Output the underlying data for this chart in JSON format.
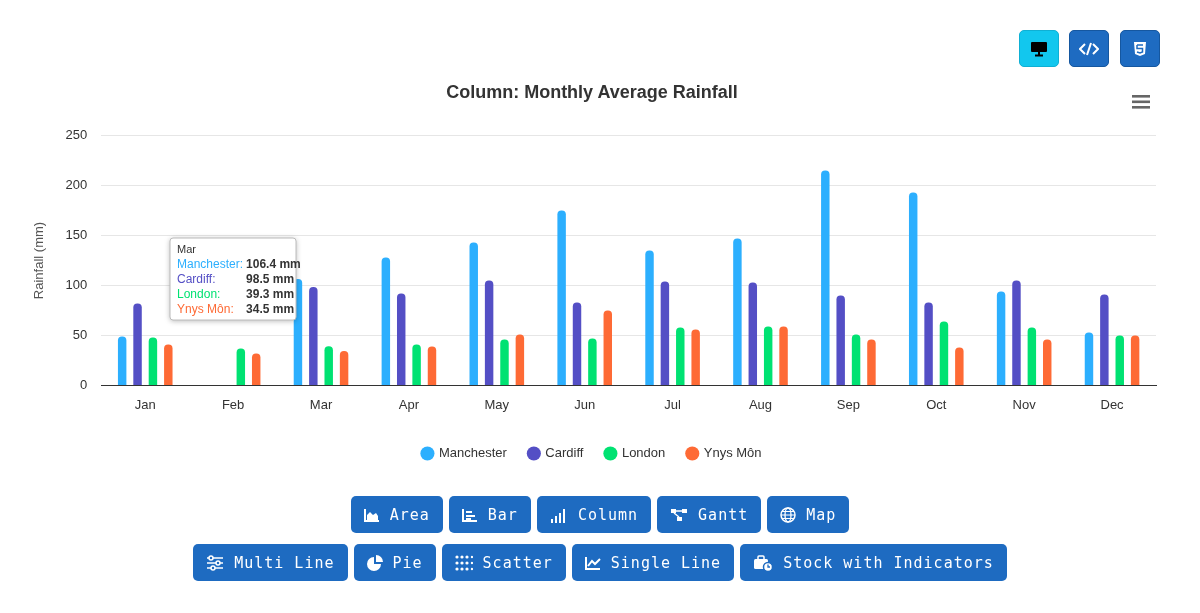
{
  "chart_data": {
    "type": "bar",
    "title": "Column: Monthly Average Rainfall",
    "ylabel": "Rainfall (mm)",
    "categories": [
      "Jan",
      "Feb",
      "Mar",
      "Apr",
      "May",
      "Jun",
      "Jul",
      "Aug",
      "Sep",
      "Oct",
      "Nov",
      "Dec"
    ],
    "series": [
      {
        "name": "Manchester",
        "color": "#2caffe",
        "values": [
          49,
          null,
          106.4,
          128,
          143,
          175,
          135,
          147,
          215,
          193,
          94,
          53
        ]
      },
      {
        "name": "Cardiff",
        "color": "#544fc5",
        "values": [
          82,
          null,
          98.5,
          92,
          105,
          83,
          104,
          103,
          90,
          83,
          105,
          91
        ]
      },
      {
        "name": "London",
        "color": "#00e272",
        "values": [
          48,
          37,
          39.3,
          41,
          46,
          47,
          58,
          59,
          51,
          64,
          58,
          50
        ]
      },
      {
        "name": "Ynys Môn",
        "color": "#fe6a35",
        "values": [
          41,
          32,
          34.5,
          39,
          51,
          75,
          56,
          59,
          46,
          38,
          46,
          50
        ]
      }
    ],
    "ylim": [
      0,
      250
    ],
    "yticks": [
      0,
      50,
      100,
      150,
      200,
      250
    ],
    "grid": "y",
    "legend": "bottom",
    "marker": "circle",
    "annotations": [
      "Mar",
      "Manchester:",
      "106.4 mm",
      "Cardiff:",
      "98.5 mm",
      "London:",
      "39.3 mm",
      "Ynys Môn:",
      "34.5 mm",
      "Area",
      "Bar",
      "Column",
      "Gantt",
      "Map",
      "Multi Line",
      "Pie",
      "Scatter",
      "Single Line",
      "Stock with Indicators"
    ]
  }
}
